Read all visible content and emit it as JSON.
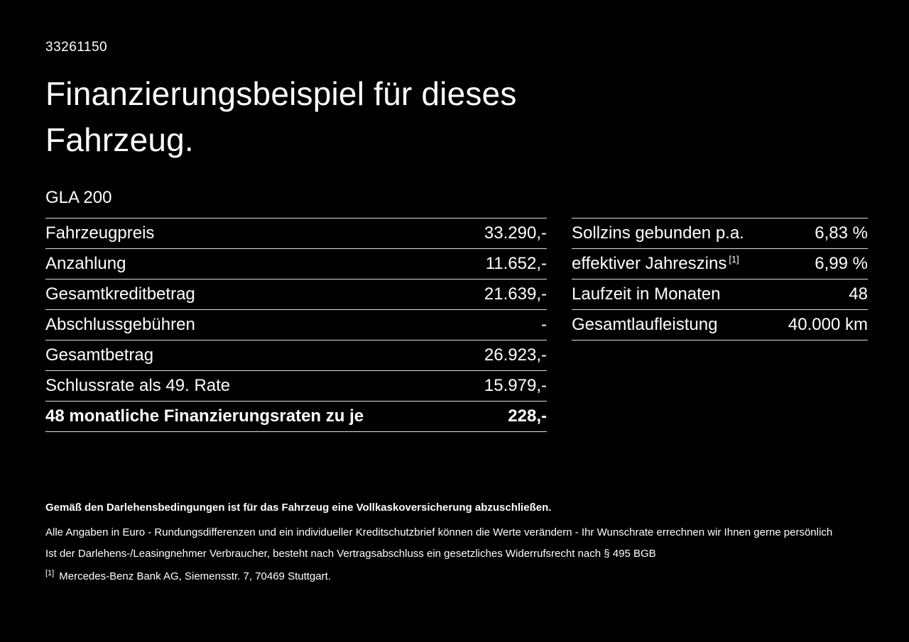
{
  "page": {
    "id_number": "33261150",
    "title_line1": "Finanzierungsbeispiel für dieses",
    "title_line2": "Fahrzeug.",
    "model": "GLA 200"
  },
  "left_table": {
    "rows": [
      {
        "label": "Fahrzeugpreis",
        "value": "33.290,-"
      },
      {
        "label": "Anzahlung",
        "value": "11.652,-"
      },
      {
        "label": "Gesamtkreditbetrag",
        "value": "21.639,-"
      },
      {
        "label": "Abschlussgebühren",
        "value": "-"
      },
      {
        "label": "Gesamtbetrag",
        "value": "26.923,-"
      },
      {
        "label": "Schlussrate als 49. Rate",
        "value": "15.979,-"
      },
      {
        "label": "48 monatliche Finanzierungsraten zu je",
        "value": "228,-"
      }
    ]
  },
  "right_table": {
    "rows": [
      {
        "label": "Sollzins gebunden p.a.",
        "value": "6,83 %"
      },
      {
        "label": "effektiver Jahreszins",
        "label_sup": "[1]",
        "value": "6,99 %"
      },
      {
        "label": "Laufzeit in Monaten",
        "value": "48"
      },
      {
        "label": "Gesamtlaufleistung",
        "value": "40.000 km"
      }
    ]
  },
  "footnotes": {
    "bold_line": "Gemäß den Darlehensbedingungen ist für das Fahrzeug eine Vollkaskoversicherung abzuschließen.",
    "line2": "Alle Angaben in Euro - Rundungsdifferenzen und ein individueller Kreditschutzbrief können die Werte verändern - Ihr Wunschrate errechnen wir Ihnen gerne persönlich",
    "line3": "Ist der Darlehens-/Leasingnehmer Verbraucher, besteht nach Vertragsabschluss ein gesetzliches Widerrufsrecht nach § 495 BGB",
    "ref_marker": "[1]",
    "ref_text": "Mercedes-Benz Bank AG, Siemensstr. 7, 70469 Stuttgart."
  },
  "colors": {
    "background": "#000000",
    "text": "#ffffff",
    "divider": "#dedede"
  }
}
